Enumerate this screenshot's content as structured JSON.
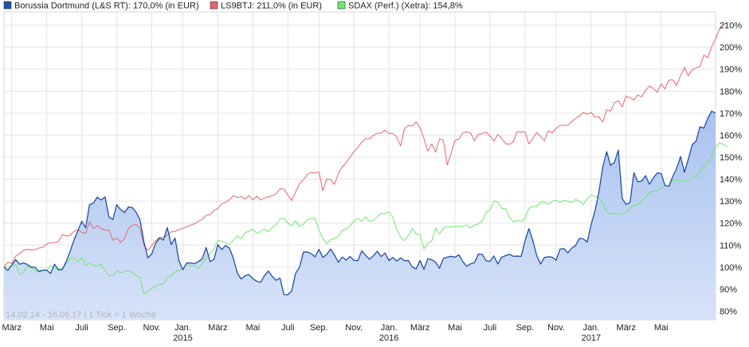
{
  "chart_data": {
    "type": "line",
    "date_range_label": "14.02.14 - 16.06.17",
    "tick_note": "1 Tick = 1 Woche",
    "ylim": [
      76,
      216
    ],
    "yticks": [
      "80%",
      "90%",
      "100%",
      "110%",
      "120%",
      "130%",
      "140%",
      "150%",
      "160%",
      "170%",
      "180%",
      "190%",
      "200%",
      "210%"
    ],
    "yticks_values": [
      80,
      90,
      100,
      110,
      120,
      130,
      140,
      150,
      160,
      170,
      180,
      190,
      200,
      210
    ],
    "xticks": [
      "März",
      "Mai",
      "Juli",
      "Sep.",
      "Nov.",
      "Jan.",
      "März",
      "Mai",
      "Juli",
      "Sep.",
      "Nov.",
      "Jan.",
      "März",
      "Mai",
      "Juli",
      "Sep.",
      "Nov.",
      "Jan.",
      "März",
      "Mai"
    ],
    "xticks_index": [
      2,
      11,
      20,
      29,
      38,
      46,
      55,
      64,
      73,
      81,
      90,
      99,
      107,
      116,
      125,
      134,
      142,
      151,
      160,
      169
    ],
    "years": [
      {
        "label": "2015",
        "index": 46
      },
      {
        "label": "2016",
        "index": 99
      },
      {
        "label": "2017",
        "index": 151
      }
    ],
    "grid": true,
    "legend_position": "top-left",
    "series": [
      {
        "name": "Borussia Dortmund (L&S RT): 170,0% (in EUR)",
        "color": "#1f4fa8",
        "fill": true,
        "values": [
          100.0,
          98.5,
          100.9,
          103.4,
          101.3,
          101.9,
          101.2,
          100.0,
          99.9,
          97.9,
          98.6,
          98.6,
          97.1,
          101.3,
          98.7,
          98.9,
          102.5,
          107.1,
          112.3,
          116.6,
          120.8,
          117.8,
          128.4,
          129.1,
          131.8,
          130.5,
          131.9,
          122.8,
          121.6,
          128.4,
          126.1,
          124.9,
          127.3,
          127.1,
          124.9,
          121.4,
          111.4,
          104.2,
          106.0,
          110.8,
          113.2,
          112.3,
          118.0,
          110.2,
          113.2,
          102.9,
          98.8,
          101.9,
          101.9,
          101.6,
          102.5,
          103.8,
          108.9,
          102.5,
          103.5,
          110.2,
          108.0,
          109.8,
          108.6,
          104.0,
          97.3,
          94.6,
          96.1,
          96.6,
          94.7,
          93.6,
          93.1,
          96.1,
          98.2,
          95.7,
          94.0,
          95.0,
          87.5,
          87.4,
          89.2,
          97.2,
          99.9,
          106.8,
          106.9,
          106.2,
          104.7,
          108.1,
          104.4,
          105.8,
          108.2,
          105.5,
          102.2,
          104.6,
          103.2,
          104.8,
          103.1,
          102.9,
          107.4,
          105.4,
          103.6,
          105.1,
          107.2,
          104.8,
          106.4,
          103.0,
          104.4,
          102.7,
          104.2,
          102.9,
          103.0,
          100.0,
          99.2,
          103.0,
          99.0,
          103.8,
          103.4,
          102.2,
          99.5,
          103.9,
          104.5,
          104.9,
          104.5,
          105.6,
          102.6,
          100.4,
          101.5,
          102.0,
          105.9,
          105.8,
          102.9,
          102.6,
          105.1,
          101.4,
          104.5,
          105.2,
          105.8,
          104.9,
          105.0,
          104.9,
          111.9,
          117.5,
          112.2,
          105.3,
          101.4,
          104.4,
          104.7,
          104.5,
          103.1,
          108.2,
          108.4,
          106.5,
          108.6,
          109.8,
          113.1,
          112.8,
          111.4,
          119.3,
          125.6,
          134.1,
          145.6,
          152.5,
          146.3,
          147.6,
          153.2,
          131.2,
          128.5,
          129.4,
          142.9,
          138.8,
          139.1,
          141.6,
          137.7,
          140.5,
          142.8,
          142.6,
          137.1,
          136.8,
          141.2,
          144.9,
          150.3,
          143.1,
          149.0,
          155.6,
          157.3,
          163.8,
          163.2,
          167.6,
          170.9,
          170.0
        ]
      },
      {
        "name": "LS9BTJ: 211,0% (in EUR)",
        "color": "#e8646b",
        "fill": false,
        "values": [
          100.0,
          102.2,
          101.6,
          105.0,
          106.0,
          107.6,
          108.1,
          107.8,
          107.9,
          108.7,
          109.0,
          110.5,
          111.1,
          111.1,
          111.6,
          114.8,
          114.1,
          114.5,
          116.2,
          117.0,
          115.8,
          115.3,
          120.6,
          117.5,
          118.9,
          117.5,
          116.9,
          116.8,
          112.2,
          113.1,
          111.4,
          112.9,
          117.5,
          119.1,
          119.3,
          117.5,
          109.9,
          107.6,
          109.8,
          111.9,
          113.5,
          113.4,
          114.5,
          116.0,
          116.2,
          117.1,
          117.6,
          118.3,
          119.1,
          119.7,
          120.8,
          121.8,
          123.6,
          123.8,
          125.8,
          126.6,
          128.8,
          129.5,
          130.6,
          132.5,
          131.6,
          132.1,
          130.9,
          132.5,
          130.6,
          132.3,
          130.6,
          131.3,
          132.1,
          132.4,
          133.4,
          135.6,
          135.5,
          132.8,
          130.3,
          134.2,
          138.0,
          139.7,
          142.1,
          143.1,
          142.8,
          143.4,
          134.7,
          140.1,
          139.8,
          137.6,
          142.6,
          145.6,
          147.4,
          150.0,
          152.6,
          154.4,
          156.8,
          158.4,
          158.3,
          159.9,
          160.8,
          161.0,
          162.3,
          160.7,
          160.8,
          159.1,
          155.1,
          163.0,
          164.4,
          164.1,
          166.0,
          163.4,
          158.5,
          152.7,
          156.0,
          152.3,
          158.3,
          157.7,
          146.4,
          151.7,
          157.6,
          158.2,
          161.1,
          161.5,
          160.9,
          157.4,
          160.4,
          160.7,
          161.4,
          159.6,
          157.3,
          160.3,
          158.6,
          156.1,
          155.8,
          157.0,
          161.6,
          161.4,
          161.5,
          156.0,
          158.5,
          161.2,
          159.5,
          157.5,
          162.0,
          161.1,
          163.1,
          164.4,
          164.5,
          164.5,
          166.2,
          167.6,
          168.8,
          170.3,
          169.5,
          170.3,
          168.2,
          168.3,
          165.9,
          171.5,
          170.9,
          174.8,
          175.6,
          172.8,
          177.8,
          177.0,
          176.0,
          178.3,
          177.4,
          180.3,
          182.3,
          181.2,
          179.5,
          183.3,
          181.0,
          185.0,
          185.2,
          182.6,
          187.0,
          190.8,
          187.0,
          189.7,
          190.6,
          191.1,
          196.4,
          195.2,
          200.2,
          203.8,
          208.2,
          210.3,
          211.0
        ]
      },
      {
        "name": "SDAX (Perf.) (Xetra): 154,8%",
        "color": "#6ee86e",
        "fill": false,
        "values": [
          100.0,
          99.9,
          100.7,
          101.2,
          96.6,
          97.5,
          100.4,
          99.8,
          98.1,
          98.6,
          98.6,
          98.5,
          100.8,
          99.4,
          99.1,
          99.4,
          101.2,
          104.0,
          104.1,
          102.2,
          104.3,
          100.8,
          101.6,
          100.8,
          100.5,
          101.3,
          98.4,
          96.1,
          96.2,
          98.2,
          97.5,
          98.0,
          98.3,
          97.6,
          96.2,
          95.4,
          87.7,
          89.1,
          90.3,
          91.3,
          92.1,
          92.5,
          95.1,
          96.0,
          97.9,
          98.3,
          99.2,
          101.7,
          100.5,
          100.8,
          99.5,
          101.8,
          104.0,
          106.1,
          108.2,
          112.1,
          111.8,
          110.9,
          110.2,
          112.3,
          114.2,
          113.0,
          115.6,
          116.3,
          117.2,
          115.3,
          116.2,
          117.3,
          116.1,
          118.0,
          119.2,
          121.8,
          122.2,
          120.0,
          118.8,
          121.0,
          118.5,
          119.4,
          121.4,
          122.0,
          122.1,
          116.9,
          113.0,
          110.6,
          112.4,
          113.0,
          114.0,
          116.8,
          117.2,
          118.7,
          121.0,
          122.2,
          120.9,
          122.8,
          120.8,
          121.2,
          122.9,
          124.5,
          124.2,
          125.1,
          122.7,
          117.2,
          113.7,
          112.0,
          114.3,
          117.5,
          115.0,
          114.8,
          108.3,
          110.7,
          111.8,
          117.7,
          114.9,
          117.8,
          118.5,
          118.2,
          118.5,
          118.5,
          118.6,
          119.2,
          117.7,
          119.2,
          119.6,
          121.0,
          124.8,
          126.2,
          130.1,
          129.6,
          126.7,
          126.6,
          122.7,
          120.5,
          121.2,
          120.9,
          122.3,
          126.8,
          127.5,
          127.5,
          129.5,
          129.6,
          128.6,
          130.0,
          130.3,
          129.4,
          130.3,
          130.0,
          129.4,
          130.7,
          130.0,
          128.5,
          131.1,
          132.8,
          132.1,
          131.5,
          129.2,
          125.1,
          124.2,
          124.6,
          124.0,
          124.3,
          124.8,
          127.0,
          128.1,
          128.5,
          130.1,
          131.9,
          134.1,
          134.4,
          134.9,
          135.8,
          137.2,
          136.8,
          139.7,
          139.7,
          139.3,
          139.0,
          139.8,
          140.6,
          141.1,
          143.8,
          145.7,
          147.3,
          151.1,
          154.2,
          156.6,
          155.8,
          154.8
        ]
      }
    ]
  }
}
